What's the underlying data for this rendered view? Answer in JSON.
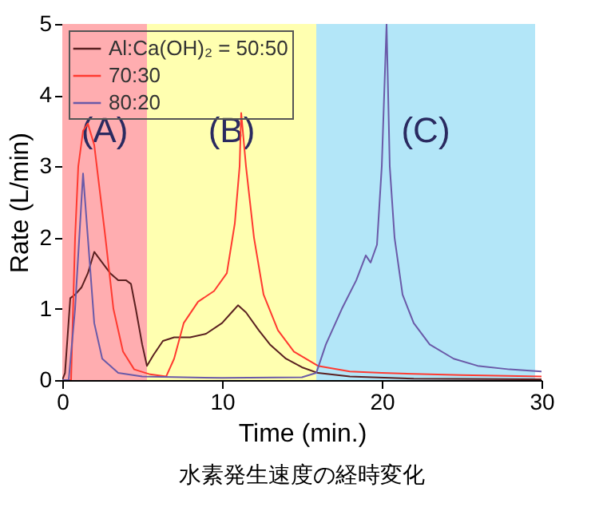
{
  "chart_data": {
    "type": "line",
    "title": "水素発生速度の経時変化",
    "xlabel": "Time (min.)",
    "ylabel": "Rate (L/min)",
    "xlim": [
      0,
      30
    ],
    "xticks": [
      0,
      10,
      20,
      30
    ],
    "ylim": [
      0,
      5
    ],
    "yticks": [
      0,
      1,
      2,
      3,
      4,
      5
    ],
    "grid": false,
    "legend": "top left",
    "bands": [
      {
        "axis": "x",
        "from": 0,
        "to": 5.3,
        "label": "(A)",
        "color": "#ffadb0"
      },
      {
        "axis": "x",
        "from": 5.3,
        "to": 15.9,
        "label": "(B)",
        "color": "#ffffb0"
      },
      {
        "axis": "x",
        "from": 15.9,
        "to": 29.6,
        "label": "(C)",
        "color": "#b3e6f8"
      }
    ],
    "series": [
      {
        "name": "Al:Ca(OH)₂ = 50:50",
        "color": "#5a2020",
        "x": [
          0,
          0.17,
          0.5,
          0.8,
          1.2,
          1.6,
          2.0,
          2.5,
          3.0,
          3.5,
          4.0,
          4.3,
          4.6,
          5.0,
          5.3,
          5.7,
          6.3,
          7,
          8,
          9,
          10,
          10.6,
          11,
          11.5,
          12.3,
          13,
          14,
          15,
          16,
          18,
          22,
          30
        ],
        "values": [
          0,
          0.1,
          1.15,
          1.2,
          1.3,
          1.5,
          1.8,
          1.65,
          1.5,
          1.4,
          1.4,
          1.35,
          1.0,
          0.5,
          0.2,
          0.35,
          0.55,
          0.6,
          0.6,
          0.65,
          0.8,
          0.95,
          1.05,
          0.95,
          0.7,
          0.5,
          0.3,
          0.18,
          0.1,
          0.05,
          0.02,
          0.01
        ]
      },
      {
        "name": "70:30",
        "color": "#ff3a30",
        "x": [
          0,
          0.55,
          0.8,
          1.0,
          1.3,
          1.6,
          2.0,
          2.7,
          3.2,
          3.8,
          4.5,
          5.5,
          6.5,
          7.0,
          7.6,
          8.5,
          9.5,
          10.3,
          10.8,
          11.1,
          11.2,
          11.5,
          12,
          12.6,
          13.5,
          14.5,
          16,
          18,
          20,
          25,
          30
        ],
        "values": [
          0,
          0,
          2.0,
          3.0,
          3.5,
          3.6,
          3.3,
          2.0,
          1.0,
          0.4,
          0.15,
          0.08,
          0.05,
          0.3,
          0.8,
          1.1,
          1.25,
          1.5,
          2.2,
          3.0,
          3.75,
          3.0,
          2.0,
          1.2,
          0.7,
          0.4,
          0.2,
          0.12,
          0.1,
          0.07,
          0.05
        ]
      },
      {
        "name": "80:20",
        "color": "#6a5aa8",
        "x": [
          0,
          0.4,
          0.8,
          1.3,
          1.6,
          2.0,
          2.5,
          3.5,
          5,
          10,
          15,
          15.9,
          16.5,
          17.5,
          18.4,
          19,
          19.3,
          19.7,
          20.0,
          20.3,
          20.5,
          20.8,
          21.3,
          22,
          23,
          24.5,
          26,
          28,
          30
        ],
        "values": [
          0,
          0,
          1.0,
          2.9,
          2.0,
          0.8,
          0.3,
          0.1,
          0.05,
          0.03,
          0.04,
          0.1,
          0.5,
          1.0,
          1.4,
          1.75,
          1.65,
          1.9,
          3.0,
          5,
          3.0,
          2.0,
          1.2,
          0.8,
          0.5,
          0.3,
          0.2,
          0.15,
          0.12
        ]
      }
    ]
  }
}
